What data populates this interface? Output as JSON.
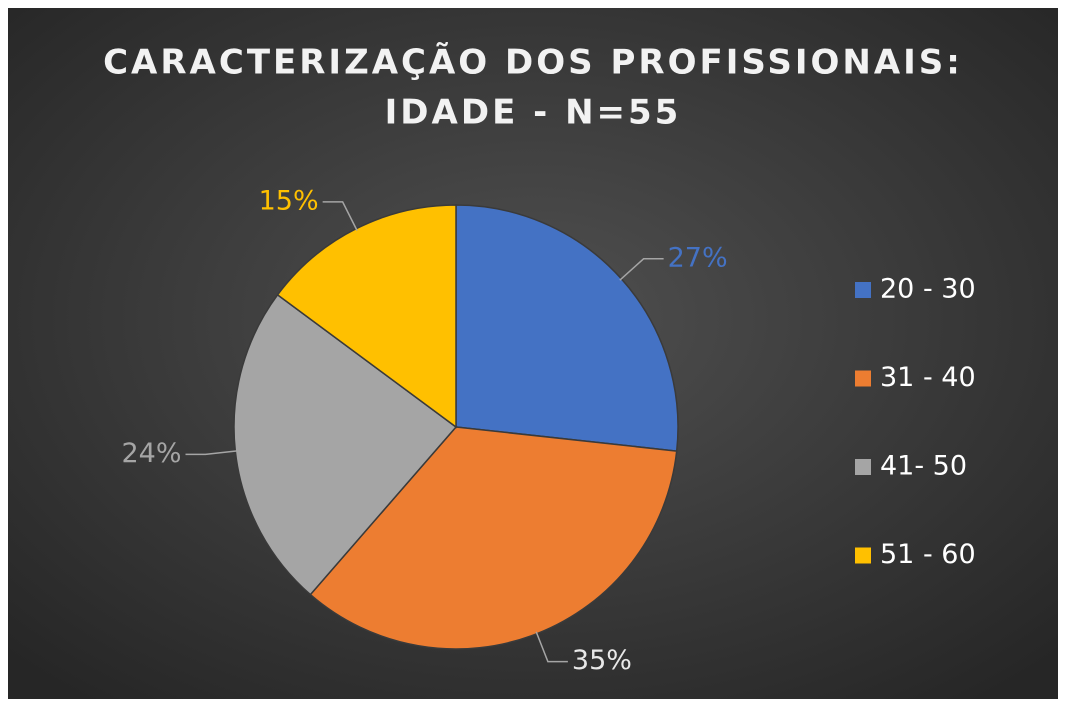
{
  "chart_data": {
    "type": "pie",
    "title": [
      "CARACTERIZAÇÃO DOS PROFISSIONAIS:",
      "IDADE - N=55"
    ],
    "categories": [
      "20 - 30",
      "31 - 40",
      "41- 50",
      "51 - 60"
    ],
    "values": [
      27,
      35,
      24,
      15
    ],
    "value_labels": [
      "27%",
      "35%",
      "24%",
      "15%"
    ],
    "colors": [
      "#4472c4",
      "#ed7d31",
      "#a5a5a5",
      "#ffc000"
    ],
    "label_colors": [
      "#4472c4",
      "#e8e8e8",
      "#a5a5a5",
      "#ffc000"
    ],
    "legend": "right"
  }
}
